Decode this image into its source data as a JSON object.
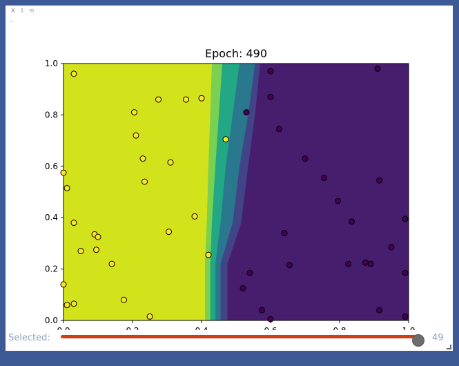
{
  "toolbar": {
    "close_label": "X",
    "download_label": "⇩",
    "reset_label": "⟲",
    "tilde": "~"
  },
  "slider": {
    "label": "Selected:",
    "value": 49,
    "min": 0,
    "max": 49,
    "track_color": "#d23e12"
  },
  "chart_data": {
    "type": "scatter",
    "title": "Epoch: 490",
    "xlim": [
      0.0,
      1.0
    ],
    "ylim": [
      0.0,
      1.0
    ],
    "xticks": [
      "0.0",
      "0.2",
      "0.4",
      "0.6",
      "0.8",
      "1.0"
    ],
    "yticks": [
      "0.0",
      "0.2",
      "0.4",
      "0.6",
      "0.8",
      "1.0"
    ],
    "background_regions": {
      "description_colors": [
        "#d2e21b",
        "#7ad151",
        "#22a884",
        "#2a788e",
        "#414487",
        "#471d6e"
      ],
      "boundary_by_y": [
        {
          "y": 0.0,
          "x": [
            0.41,
            0.425,
            0.44,
            0.455,
            0.475,
            0.49
          ]
        },
        {
          "y": 0.22,
          "x": [
            0.41,
            0.425,
            0.44,
            0.455,
            0.475,
            0.49
          ]
        },
        {
          "y": 0.38,
          "x": [
            0.415,
            0.43,
            0.455,
            0.49,
            0.515,
            0.53
          ]
        },
        {
          "y": 0.6,
          "x": [
            0.42,
            0.44,
            0.47,
            0.51,
            0.535,
            0.55
          ]
        },
        {
          "y": 0.8,
          "x": [
            0.425,
            0.45,
            0.49,
            0.535,
            0.555,
            0.57
          ]
        },
        {
          "y": 1.0,
          "x": [
            0.43,
            0.46,
            0.51,
            0.555,
            0.57,
            0.58
          ]
        }
      ]
    },
    "series": [
      {
        "color": "#fde725",
        "points": [
          [
            0.03,
            0.96
          ],
          [
            0.0,
            0.575
          ],
          [
            0.01,
            0.515
          ],
          [
            0.03,
            0.38
          ],
          [
            0.05,
            0.27
          ],
          [
            0.09,
            0.335
          ],
          [
            0.1,
            0.325
          ],
          [
            0.095,
            0.275
          ],
          [
            0.14,
            0.22
          ],
          [
            0.0,
            0.14
          ],
          [
            0.01,
            0.06
          ],
          [
            0.03,
            0.065
          ],
          [
            0.175,
            0.08
          ],
          [
            0.25,
            0.015
          ],
          [
            0.205,
            0.81
          ],
          [
            0.21,
            0.72
          ],
          [
            0.275,
            0.86
          ],
          [
            0.355,
            0.86
          ],
          [
            0.4,
            0.865
          ],
          [
            0.23,
            0.63
          ],
          [
            0.31,
            0.615
          ],
          [
            0.235,
            0.54
          ],
          [
            0.38,
            0.405
          ],
          [
            0.305,
            0.345
          ],
          [
            0.42,
            0.255
          ],
          [
            0.47,
            0.705
          ]
        ]
      },
      {
        "color": "#440154",
        "points": [
          [
            0.6,
            0.97
          ],
          [
            0.6,
            0.87
          ],
          [
            0.53,
            0.81
          ],
          [
            0.625,
            0.745
          ],
          [
            0.7,
            0.63
          ],
          [
            0.91,
            0.98
          ],
          [
            0.755,
            0.555
          ],
          [
            0.915,
            0.545
          ],
          [
            0.795,
            0.465
          ],
          [
            0.835,
            0.385
          ],
          [
            0.99,
            0.395
          ],
          [
            0.64,
            0.34
          ],
          [
            0.95,
            0.285
          ],
          [
            0.655,
            0.215
          ],
          [
            0.825,
            0.22
          ],
          [
            0.875,
            0.225
          ],
          [
            0.89,
            0.22
          ],
          [
            0.54,
            0.185
          ],
          [
            0.99,
            0.185
          ],
          [
            0.52,
            0.125
          ],
          [
            0.575,
            0.04
          ],
          [
            0.6,
            0.005
          ],
          [
            0.915,
            0.04
          ],
          [
            0.99,
            0.015
          ]
        ]
      }
    ]
  }
}
